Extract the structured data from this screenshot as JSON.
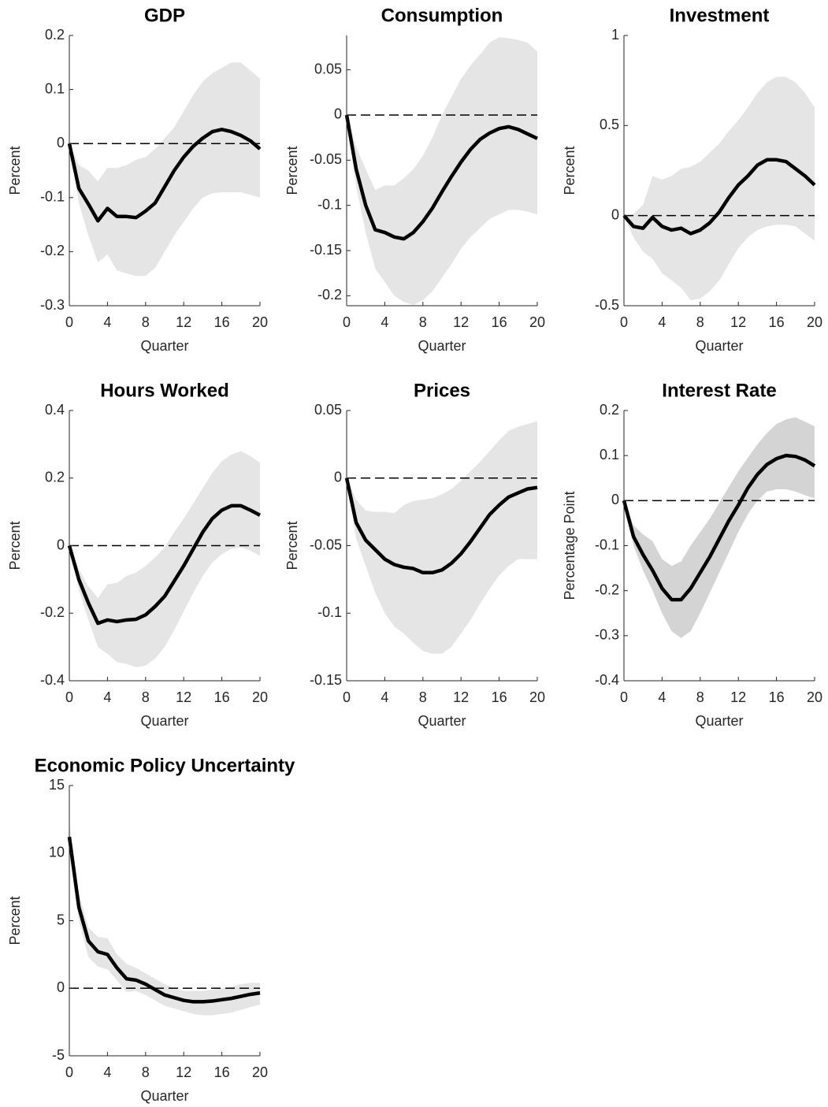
{
  "chart_data": [
    {
      "type": "line",
      "title": "GDP",
      "ylabel": "Percent",
      "xlabel": "Quarter",
      "x": [
        0,
        1,
        2,
        3,
        4,
        5,
        6,
        7,
        8,
        9,
        10,
        11,
        12,
        13,
        14,
        15,
        16,
        17,
        18,
        19,
        20
      ],
      "values": [
        0,
        -0.083,
        -0.112,
        -0.143,
        -0.12,
        -0.135,
        -0.135,
        -0.137,
        -0.125,
        -0.11,
        -0.08,
        -0.05,
        -0.025,
        -0.005,
        0.01,
        0.022,
        0.026,
        0.022,
        0.015,
        0.005,
        -0.01
      ],
      "lower": [
        0,
        -0.11,
        -0.17,
        -0.22,
        -0.205,
        -0.235,
        -0.24,
        -0.245,
        -0.245,
        -0.23,
        -0.2,
        -0.17,
        -0.145,
        -0.12,
        -0.1,
        -0.092,
        -0.09,
        -0.09,
        -0.09,
        -0.095,
        -0.1
      ],
      "upper": [
        0,
        -0.04,
        -0.05,
        -0.07,
        -0.045,
        -0.045,
        -0.04,
        -0.03,
        -0.025,
        -0.01,
        0.01,
        0.03,
        0.06,
        0.09,
        0.115,
        0.13,
        0.14,
        0.15,
        0.15,
        0.135,
        0.12
      ],
      "color": "#000000",
      "band_color": "#e5e5e5",
      "hline": 0,
      "xlim": [
        0,
        20
      ],
      "xticks": [
        0,
        4,
        8,
        12,
        16,
        20
      ],
      "ylim": [
        -0.3,
        0.2
      ],
      "yticks": [
        -0.3,
        -0.2,
        -0.1,
        0,
        0.1,
        0.2
      ]
    },
    {
      "type": "line",
      "title": "Consumption",
      "ylabel": "Percent",
      "xlabel": "Quarter",
      "x": [
        0,
        1,
        2,
        3,
        4,
        5,
        6,
        7,
        8,
        9,
        10,
        11,
        12,
        13,
        14,
        15,
        16,
        17,
        18,
        19,
        20
      ],
      "values": [
        0,
        -0.06,
        -0.1,
        -0.127,
        -0.13,
        -0.135,
        -0.137,
        -0.13,
        -0.118,
        -0.103,
        -0.085,
        -0.068,
        -0.052,
        -0.038,
        -0.027,
        -0.02,
        -0.015,
        -0.013,
        -0.016,
        -0.021,
        -0.026
      ],
      "lower": [
        0,
        -0.08,
        -0.13,
        -0.17,
        -0.185,
        -0.2,
        -0.207,
        -0.21,
        -0.205,
        -0.195,
        -0.18,
        -0.165,
        -0.148,
        -0.135,
        -0.125,
        -0.115,
        -0.11,
        -0.105,
        -0.105,
        -0.107,
        -0.11
      ],
      "upper": [
        0,
        -0.035,
        -0.06,
        -0.083,
        -0.078,
        -0.078,
        -0.07,
        -0.06,
        -0.045,
        -0.025,
        0,
        0.02,
        0.04,
        0.055,
        0.067,
        0.08,
        0.086,
        0.085,
        0.083,
        0.08,
        0.07
      ],
      "color": "#000000",
      "band_color": "#e5e5e5",
      "hline": 0,
      "xlim": [
        0,
        20
      ],
      "xticks": [
        0,
        4,
        8,
        12,
        16,
        20
      ],
      "ylim": [
        -0.211,
        0.088
      ],
      "yticks": [
        -0.2,
        -0.15,
        -0.1,
        -0.05,
        0,
        0.05
      ]
    },
    {
      "type": "line",
      "title": "Investment",
      "ylabel": "Percent",
      "xlabel": "Quarter",
      "x": [
        0,
        1,
        2,
        3,
        4,
        5,
        6,
        7,
        8,
        9,
        10,
        11,
        12,
        13,
        14,
        15,
        16,
        17,
        18,
        19,
        20
      ],
      "values": [
        0,
        -0.06,
        -0.07,
        -0.01,
        -0.06,
        -0.08,
        -0.07,
        -0.1,
        -0.08,
        -0.04,
        0.02,
        0.1,
        0.17,
        0.22,
        0.28,
        0.31,
        0.31,
        0.3,
        0.26,
        0.22,
        0.17
      ],
      "lower": [
        0,
        -0.12,
        -0.2,
        -0.24,
        -0.32,
        -0.36,
        -0.4,
        -0.47,
        -0.46,
        -0.42,
        -0.36,
        -0.27,
        -0.18,
        -0.12,
        -0.08,
        -0.06,
        -0.05,
        -0.05,
        -0.06,
        -0.1,
        -0.14
      ],
      "upper": [
        0,
        0.01,
        0.06,
        0.22,
        0.2,
        0.22,
        0.26,
        0.27,
        0.3,
        0.35,
        0.4,
        0.47,
        0.53,
        0.6,
        0.68,
        0.74,
        0.77,
        0.77,
        0.74,
        0.68,
        0.6
      ],
      "color": "#000000",
      "band_color": "#e5e5e5",
      "hline": 0,
      "xlim": [
        0,
        20
      ],
      "xticks": [
        0,
        4,
        8,
        12,
        16,
        20
      ],
      "ylim": [
        -0.5,
        1
      ],
      "yticks": [
        -0.5,
        0,
        0.5,
        1
      ]
    },
    {
      "type": "line",
      "title": "Hours Worked",
      "ylabel": "Percent",
      "xlabel": "Quarter",
      "x": [
        0,
        1,
        2,
        3,
        4,
        5,
        6,
        7,
        8,
        9,
        10,
        11,
        12,
        13,
        14,
        15,
        16,
        17,
        18,
        19,
        20
      ],
      "values": [
        0,
        -0.1,
        -0.17,
        -0.23,
        -0.22,
        -0.225,
        -0.22,
        -0.218,
        -0.205,
        -0.18,
        -0.15,
        -0.105,
        -0.06,
        -0.01,
        0.04,
        0.08,
        0.105,
        0.118,
        0.118,
        0.105,
        0.09
      ],
      "lower": [
        0,
        -0.13,
        -0.22,
        -0.3,
        -0.32,
        -0.345,
        -0.35,
        -0.36,
        -0.355,
        -0.335,
        -0.3,
        -0.25,
        -0.195,
        -0.14,
        -0.09,
        -0.05,
        -0.025,
        -0.01,
        -0.005,
        -0.015,
        -0.03
      ],
      "upper": [
        0,
        -0.07,
        -0.12,
        -0.155,
        -0.115,
        -0.11,
        -0.09,
        -0.08,
        -0.06,
        -0.035,
        -0.005,
        0.04,
        0.08,
        0.125,
        0.17,
        0.215,
        0.25,
        0.27,
        0.28,
        0.265,
        0.245
      ],
      "color": "#000000",
      "band_color": "#e5e5e5",
      "hline": 0,
      "xlim": [
        0,
        20
      ],
      "xticks": [
        0,
        4,
        8,
        12,
        16,
        20
      ],
      "ylim": [
        -0.4,
        0.4
      ],
      "yticks": [
        -0.4,
        -0.2,
        0,
        0.2,
        0.4
      ]
    },
    {
      "type": "line",
      "title": "Prices",
      "ylabel": "Percent",
      "xlabel": "Quarter",
      "x": [
        0,
        1,
        2,
        3,
        4,
        5,
        6,
        7,
        8,
        9,
        10,
        11,
        12,
        13,
        14,
        15,
        16,
        17,
        18,
        19,
        20
      ],
      "values": [
        0,
        -0.033,
        -0.046,
        -0.053,
        -0.06,
        -0.064,
        -0.066,
        -0.067,
        -0.07,
        -0.07,
        -0.068,
        -0.063,
        -0.056,
        -0.047,
        -0.037,
        -0.027,
        -0.02,
        -0.014,
        -0.011,
        -0.008,
        -0.007
      ],
      "lower": [
        0,
        -0.045,
        -0.065,
        -0.085,
        -0.1,
        -0.11,
        -0.115,
        -0.122,
        -0.128,
        -0.13,
        -0.13,
        -0.125,
        -0.115,
        -0.105,
        -0.093,
        -0.082,
        -0.072,
        -0.065,
        -0.06,
        -0.06,
        -0.06
      ],
      "upper": [
        0,
        -0.016,
        -0.024,
        -0.025,
        -0.025,
        -0.026,
        -0.02,
        -0.017,
        -0.016,
        -0.015,
        -0.012,
        -0.008,
        -0.002,
        0.005,
        0.012,
        0.02,
        0.028,
        0.035,
        0.038,
        0.04,
        0.042
      ],
      "color": "#000000",
      "band_color": "#e5e5e5",
      "hline": 0,
      "xlim": [
        0,
        20
      ],
      "xticks": [
        0,
        4,
        8,
        12,
        16,
        20
      ],
      "ylim": [
        -0.15,
        0.05
      ],
      "yticks": [
        -0.15,
        -0.1,
        -0.05,
        0,
        0.05
      ]
    },
    {
      "type": "line",
      "title": "Interest Rate",
      "ylabel": "Percentage Point",
      "xlabel": "Quarter",
      "x": [
        0,
        1,
        2,
        3,
        4,
        5,
        6,
        7,
        8,
        9,
        10,
        11,
        12,
        13,
        14,
        15,
        16,
        17,
        18,
        19,
        20
      ],
      "values": [
        0,
        -0.08,
        -0.12,
        -0.155,
        -0.195,
        -0.22,
        -0.22,
        -0.195,
        -0.16,
        -0.125,
        -0.085,
        -0.045,
        -0.01,
        0.028,
        0.058,
        0.08,
        0.093,
        0.1,
        0.098,
        0.09,
        0.077
      ],
      "lower": [
        0,
        -0.1,
        -0.155,
        -0.2,
        -0.25,
        -0.29,
        -0.305,
        -0.29,
        -0.25,
        -0.205,
        -0.16,
        -0.115,
        -0.07,
        -0.03,
        0,
        0.02,
        0.025,
        0.025,
        0.02,
        0.012,
        0.005
      ],
      "upper": [
        0,
        -0.055,
        -0.075,
        -0.09,
        -0.13,
        -0.145,
        -0.135,
        -0.1,
        -0.07,
        -0.04,
        -0.005,
        0.03,
        0.065,
        0.095,
        0.125,
        0.15,
        0.17,
        0.18,
        0.185,
        0.175,
        0.165
      ],
      "color": "#000000",
      "band_color": "#d4d4d4",
      "hline": 0,
      "xlim": [
        0,
        20
      ],
      "xticks": [
        0,
        4,
        8,
        12,
        16,
        20
      ],
      "ylim": [
        -0.4,
        0.2
      ],
      "yticks": [
        -0.4,
        -0.3,
        -0.2,
        -0.1,
        0,
        0.1,
        0.2
      ]
    },
    {
      "type": "line",
      "title": "Economic Policy Uncertainty",
      "ylabel": "Percent",
      "xlabel": "Quarter",
      "x": [
        0,
        1,
        2,
        3,
        4,
        5,
        6,
        7,
        8,
        9,
        10,
        11,
        12,
        13,
        14,
        15,
        16,
        17,
        18,
        19,
        20
      ],
      "values": [
        11.2,
        6,
        3.5,
        2.7,
        2.5,
        1.5,
        0.7,
        0.6,
        0.3,
        -0.1,
        -0.5,
        -0.7,
        -0.9,
        -1,
        -1,
        -0.95,
        -0.85,
        -0.75,
        -0.6,
        -0.45,
        -0.35
      ],
      "lower": [
        10.2,
        5,
        2.3,
        1.6,
        1.4,
        0.6,
        -0.3,
        -0.2,
        -0.5,
        -0.9,
        -1.3,
        -1.5,
        -1.7,
        -1.9,
        -2,
        -2,
        -1.9,
        -1.8,
        -1.6,
        -1.4,
        -1.2
      ],
      "upper": [
        12.2,
        7,
        4.5,
        3.8,
        3.7,
        2.5,
        1.8,
        1.5,
        1.1,
        0.7,
        0.3,
        0,
        -0.2,
        -0.2,
        -0.2,
        -0.1,
        0,
        0.1,
        0.3,
        0.4,
        0.4
      ],
      "color": "#000000",
      "band_color": "#e5e5e5",
      "hline": 0,
      "xlim": [
        0,
        20
      ],
      "xticks": [
        0,
        4,
        8,
        12,
        16,
        20
      ],
      "ylim": [
        -5,
        15
      ],
      "yticks": [
        -5,
        0,
        5,
        10,
        15
      ]
    }
  ]
}
